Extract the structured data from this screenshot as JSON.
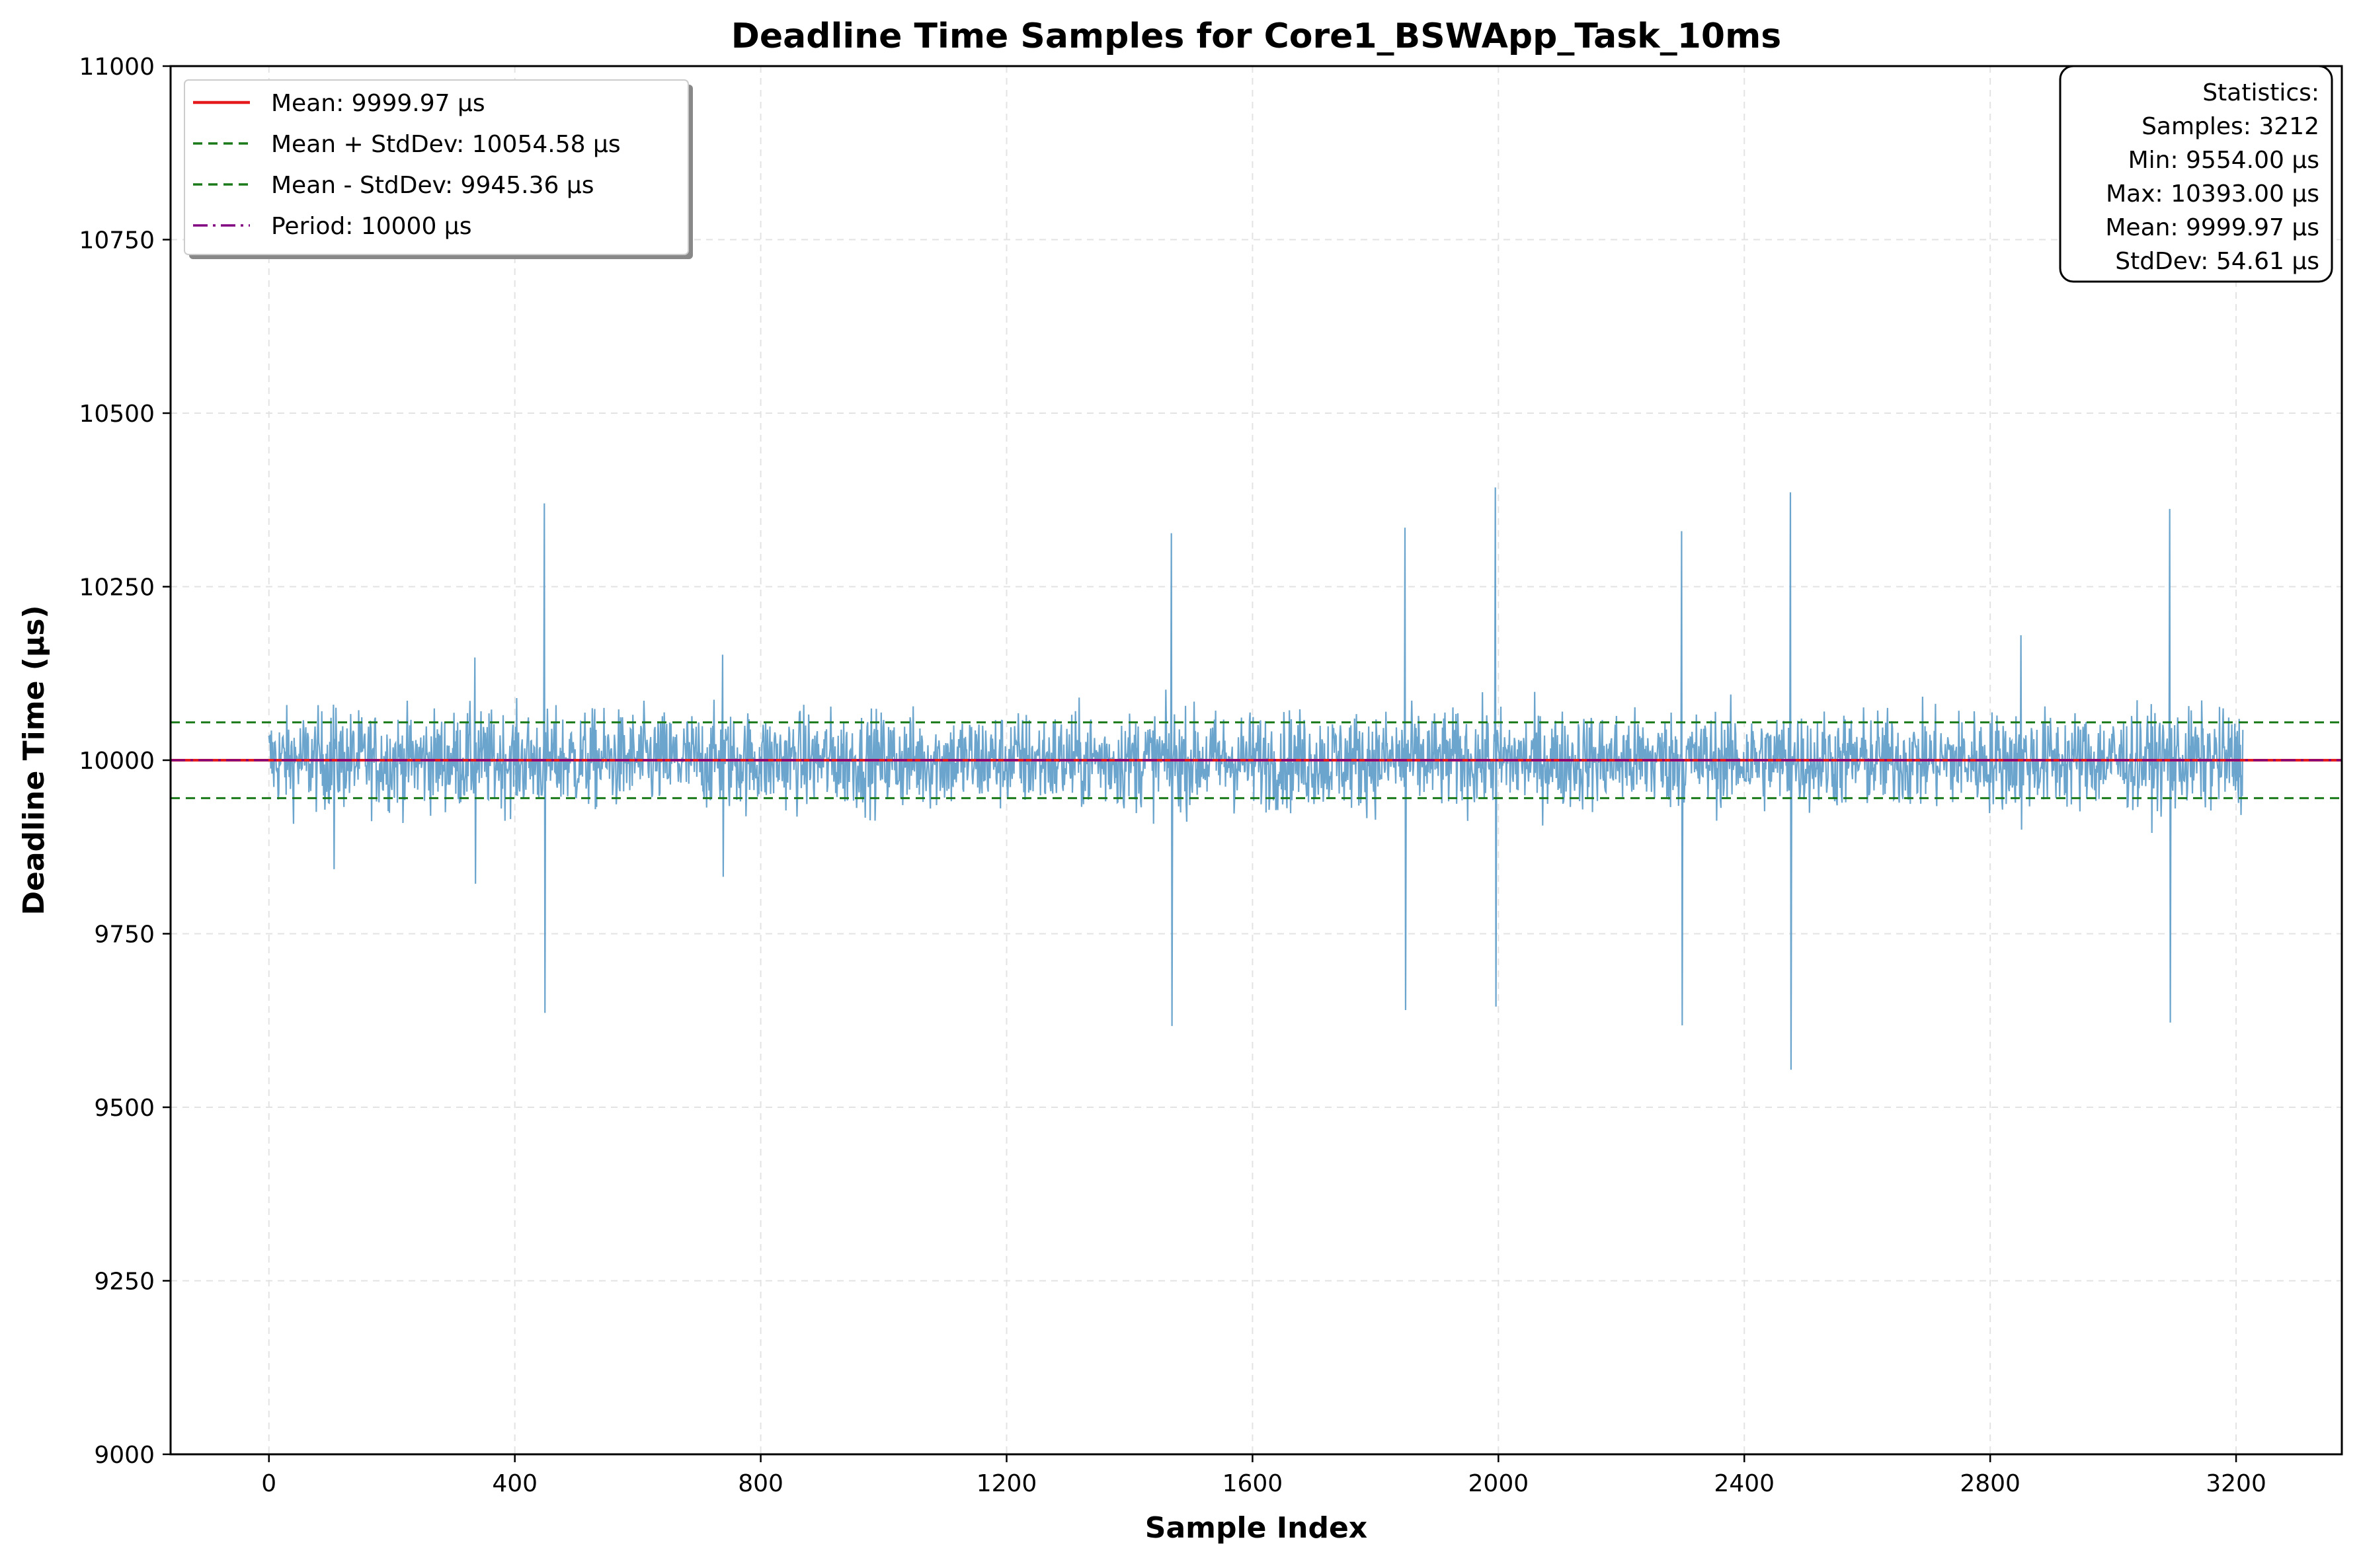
{
  "chart_data": {
    "type": "line",
    "title": "Deadline Time Samples for Core1_BSWApp_Task_10ms",
    "xlabel": "Sample Index",
    "ylabel": "Deadline Time (µs)",
    "xlim": [
      -160,
      3372
    ],
    "ylim": [
      9000,
      11000
    ],
    "xticks": [
      0,
      400,
      800,
      1200,
      1600,
      2000,
      2400,
      2800,
      3200
    ],
    "yticks": [
      9000,
      9250,
      9500,
      9750,
      10000,
      10250,
      10500,
      10750,
      11000
    ],
    "grid": true,
    "legend_position": "top-left",
    "series": [
      {
        "name": "Deadline Time",
        "color": "#5b9bc8",
        "sample_count": 3212,
        "baseline": 10000,
        "typical_band": [
          9910,
          10090
        ],
        "spikes": [
          {
            "x": 448,
            "high": 10370,
            "low": 9636
          },
          {
            "x": 1468,
            "high": 10327,
            "low": 9617
          },
          {
            "x": 1848,
            "high": 10335,
            "low": 9640
          },
          {
            "x": 1995,
            "high": 10393,
            "low": 9645
          },
          {
            "x": 2298,
            "high": 10330,
            "low": 9618
          },
          {
            "x": 2475,
            "high": 10386,
            "low": 9554
          },
          {
            "x": 3092,
            "high": 10362,
            "low": 9622
          },
          {
            "x": 2850,
            "high": 10180,
            "low": 9900
          },
          {
            "x": 335,
            "high": 10148,
            "low": 9822
          },
          {
            "x": 738,
            "high": 10152,
            "low": 9832
          },
          {
            "x": 105,
            "high": 10080,
            "low": 9843
          }
        ]
      }
    ],
    "reference_lines": [
      {
        "name": "Mean: 9999.97 µs",
        "value": 9999.97,
        "color": "#e41a1c",
        "style": "solid"
      },
      {
        "name": "Mean + StdDev: 10054.58 µs",
        "value": 10054.58,
        "color": "#1a7a1a",
        "style": "dashed"
      },
      {
        "name": "Mean - StdDev: 9945.36 µs",
        "value": 9945.36,
        "color": "#1a7a1a",
        "style": "dashed"
      },
      {
        "name": "Period: 10000 µs",
        "value": 10000,
        "color": "#800080",
        "style": "dashdot"
      }
    ],
    "stats_box": {
      "lines": [
        "Statistics:",
        "Samples: 3212",
        "Min: 9554.00 µs",
        "Max: 10393.00 µs",
        "Mean: 9999.97 µs",
        "StdDev: 54.61 µs"
      ]
    }
  }
}
